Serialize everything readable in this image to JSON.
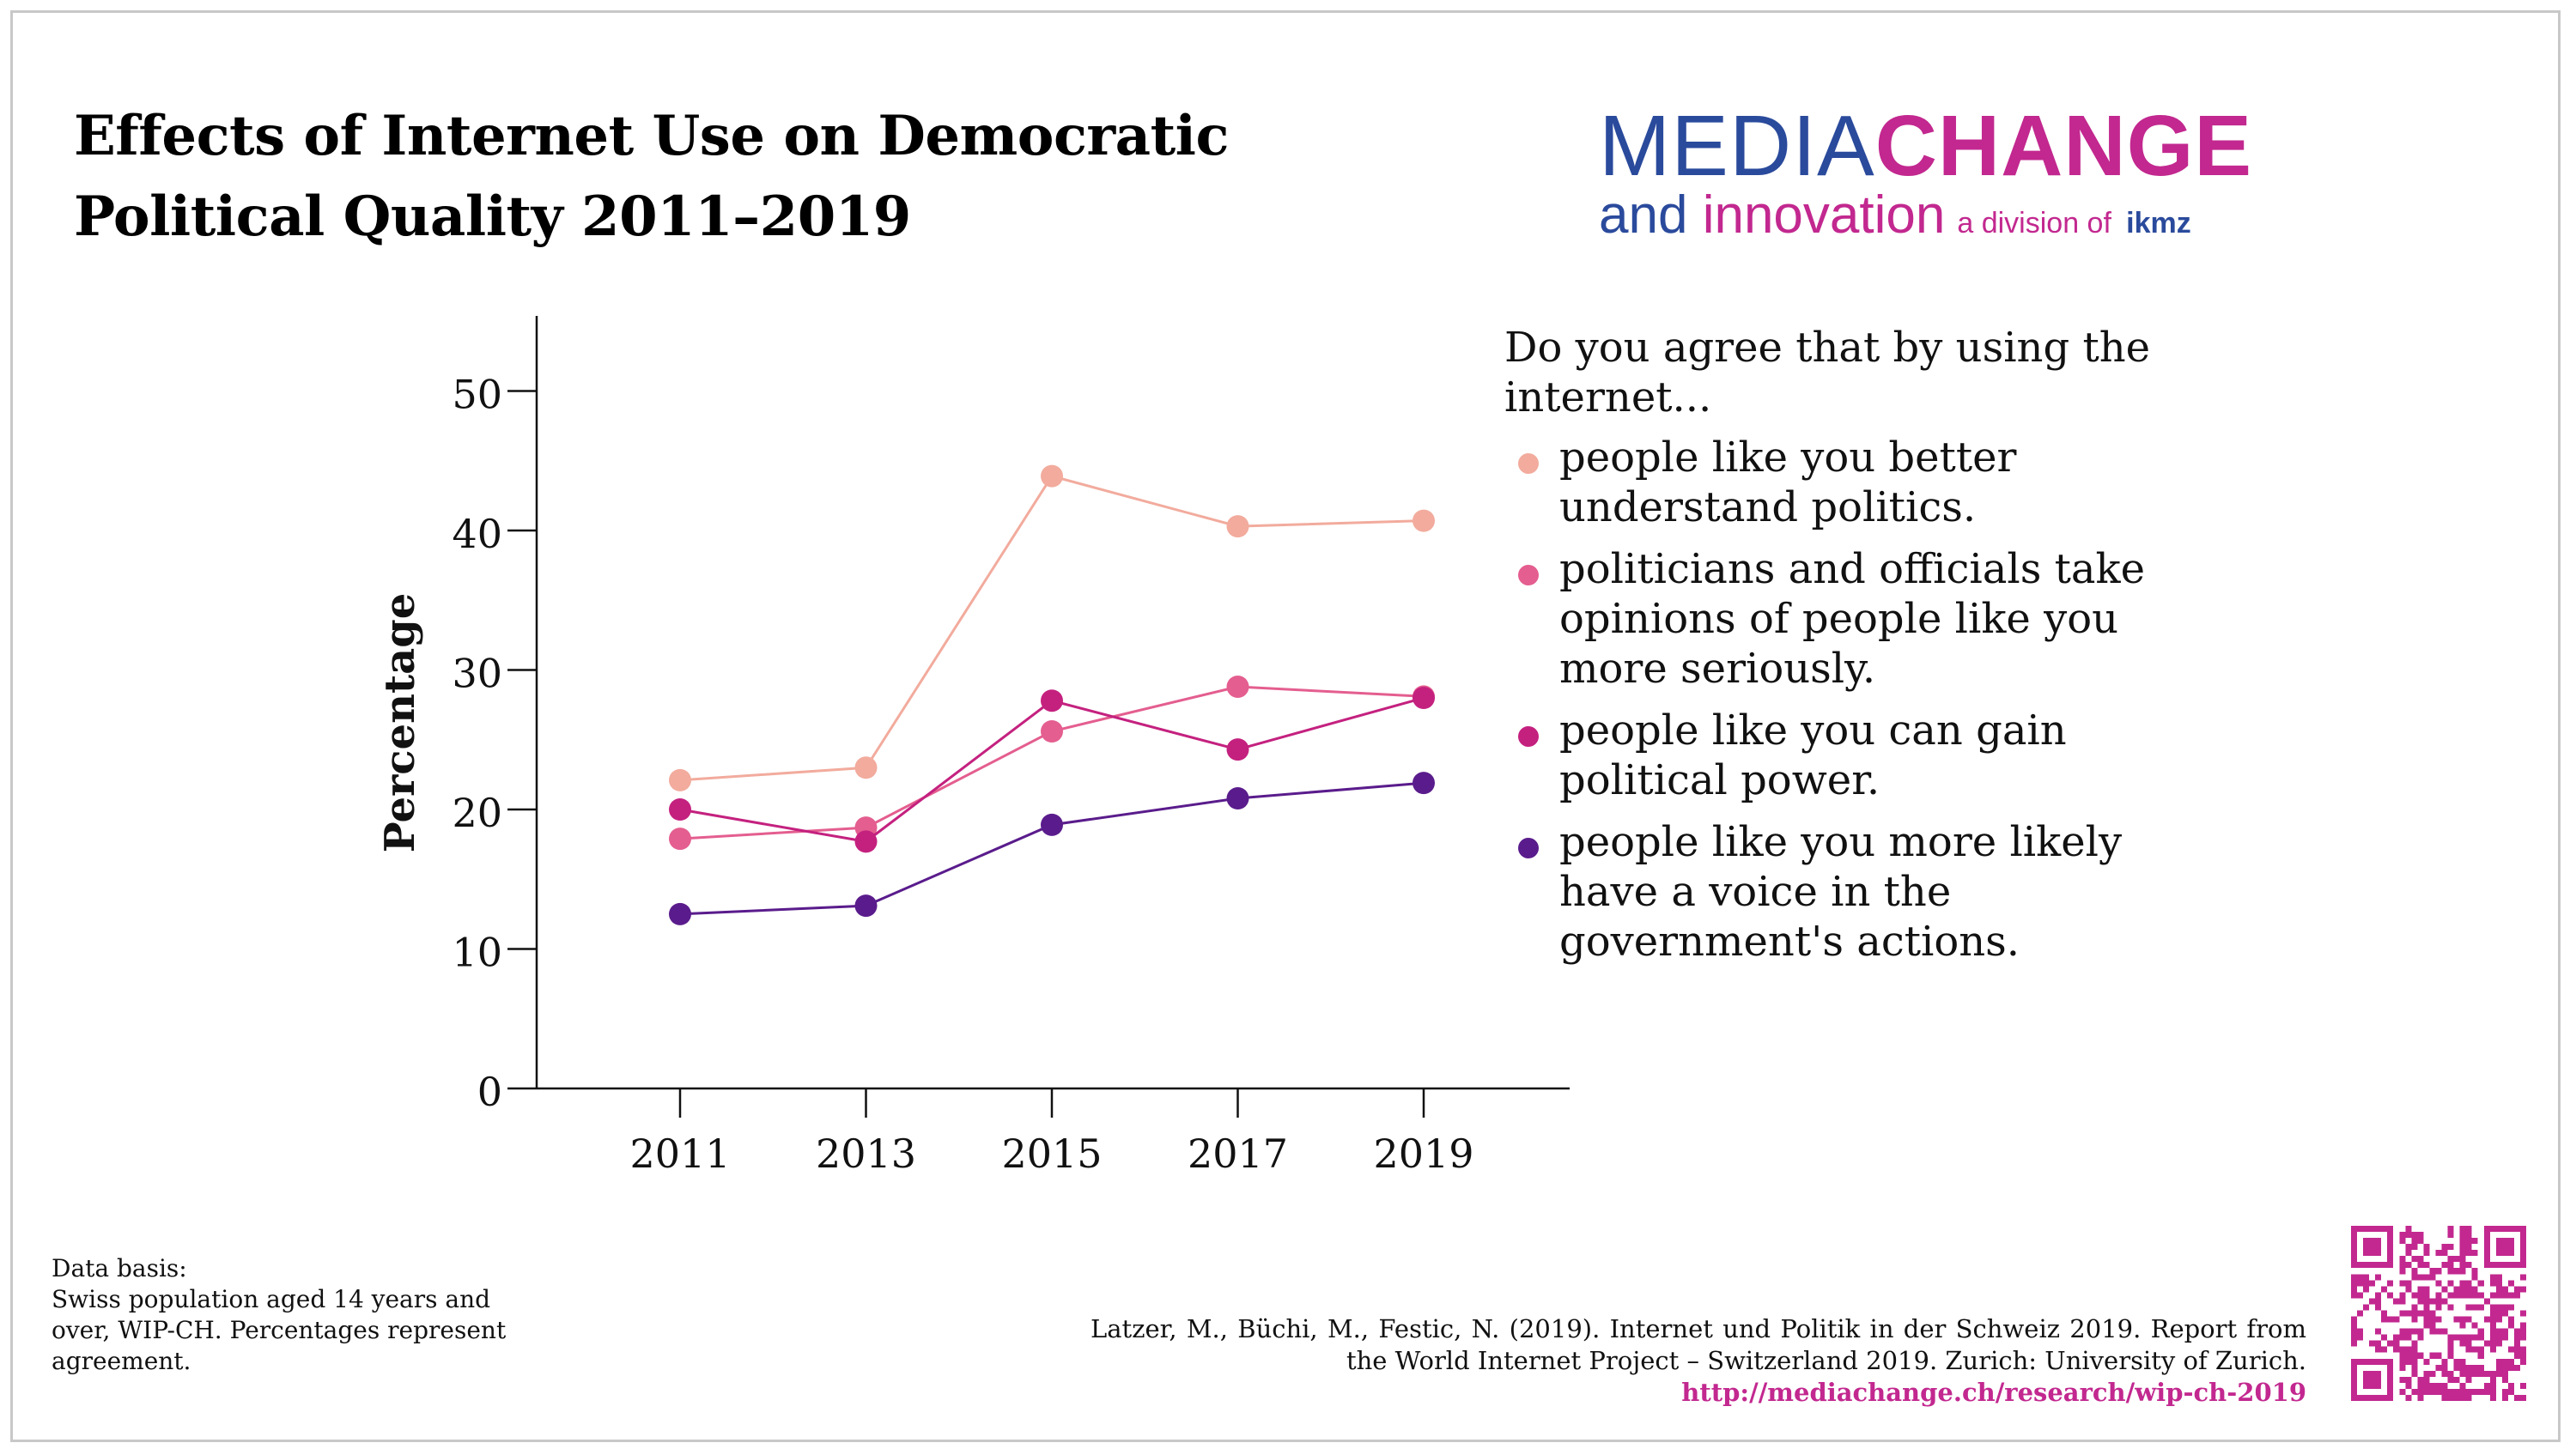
{
  "page": {
    "title": "Effects of Internet Use on Democratic Political Quality 2011–2019"
  },
  "logo": {
    "media": "MEDIA",
    "change": "CHANGE",
    "and": "and",
    "innovation": "innovation",
    "division": "a division of",
    "ikmz": "ikmz"
  },
  "legend": {
    "question": "Do you agree that by using the internet..."
  },
  "chart_data": {
    "type": "line",
    "title": "Effects of Internet Use on Democratic Political Quality 2011–2019",
    "xlabel": "",
    "ylabel": "Percentage",
    "x": [
      2011,
      2013,
      2015,
      2017,
      2019
    ],
    "x_tick_labels": [
      "2011",
      "2013",
      "2015",
      "2017",
      "2019"
    ],
    "y_ticks": [
      0,
      10,
      20,
      30,
      40,
      50
    ],
    "ylim": [
      0,
      55
    ],
    "grid": false,
    "legend_position": "right",
    "series": [
      {
        "name": "people like you better understand politics.",
        "color": "#f2ab9d",
        "values": [
          22.1,
          23.0,
          43.9,
          40.3,
          40.7
        ]
      },
      {
        "name": "politicians and officials take opinions of people like you more seriously.",
        "color": "#e45e8f",
        "values": [
          17.9,
          18.7,
          25.6,
          28.8,
          28.1
        ]
      },
      {
        "name": "people like you can gain political power.",
        "color": "#c4217f",
        "values": [
          20.0,
          17.7,
          27.8,
          24.3,
          28.0
        ]
      },
      {
        "name": "people like you more likely have a voice in the government's actions.",
        "color": "#5a1c8c",
        "values": [
          12.5,
          13.1,
          18.9,
          20.8,
          21.9
        ]
      }
    ]
  },
  "footer": {
    "data_basis": "Data basis:\nSwiss population aged 14 years and over, WIP-CH. Percentages represent agreement.",
    "citation": "Latzer, M., Büchi, M., Festic, N. (2019). Internet und Politik in der Schweiz 2019. Report from the World Internet Project – Switzerland 2019. Zurich: University of Zurich.",
    "url": "http://mediachange.ch/research/wip-ch-2019"
  }
}
